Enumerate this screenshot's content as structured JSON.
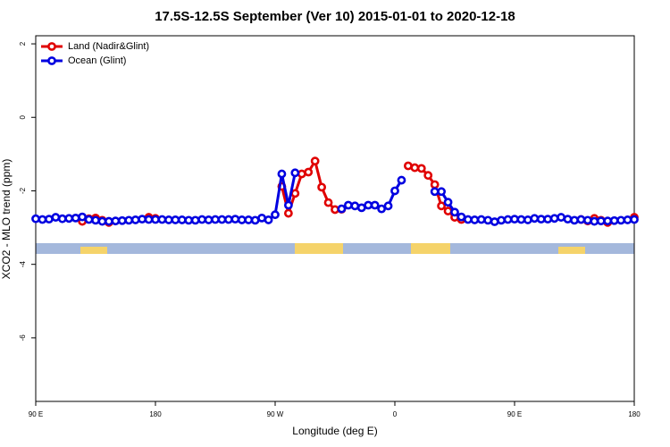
{
  "chart_data": {
    "type": "line",
    "title": "17.5S-12.5S September (Ver 10)   2015-01-01 to 2020-12-18",
    "xlabel": "Longitude (deg E)",
    "ylabel": "XCO2 - MLO trend (ppm)",
    "xlim": [
      90,
      540
    ],
    "ylim": [
      -7.73,
      2.22
    ],
    "xticks": [
      {
        "value": 90,
        "label": "90 E"
      },
      180,
      {
        "value": 270,
        "label": "90 W"
      },
      {
        "value": 360,
        "label": "0"
      },
      {
        "value": 450,
        "label": "90 E"
      },
      {
        "value": 540,
        "label": "180"
      }
    ],
    "yticks": [
      -6,
      -4,
      -2,
      0,
      2
    ],
    "legend": "top-left",
    "x": [
      90,
      95,
      100,
      105,
      110,
      115,
      120,
      125,
      130,
      135,
      140,
      145,
      150,
      155,
      160,
      165,
      170,
      175,
      180,
      185,
      190,
      195,
      200,
      205,
      210,
      215,
      220,
      225,
      230,
      235,
      240,
      245,
      250,
      255,
      260,
      265,
      270,
      275,
      280,
      285,
      290,
      295,
      300,
      305,
      310,
      315,
      320,
      325,
      330,
      335,
      340,
      345,
      350,
      355,
      360,
      365,
      370,
      375,
      380,
      385,
      390,
      395,
      400,
      405,
      410,
      415,
      420,
      425,
      430,
      435,
      440,
      445,
      450,
      455,
      460,
      465,
      470,
      475,
      480,
      485,
      490,
      495,
      500,
      505,
      510,
      515,
      520,
      525,
      530,
      535,
      540
    ],
    "series": [
      {
        "name": "Land (Nadir&Glint)",
        "color": "#e00000",
        "values": [
          null,
          null,
          null,
          null,
          null,
          null,
          null,
          -2.83,
          -2.76,
          -2.74,
          -2.8,
          -2.86,
          null,
          null,
          null,
          null,
          null,
          -2.72,
          -2.75,
          null,
          null,
          null,
          null,
          null,
          null,
          null,
          null,
          null,
          null,
          null,
          null,
          null,
          null,
          null,
          null,
          null,
          null,
          -1.88,
          -2.61,
          -2.07,
          -1.54,
          -1.49,
          -1.19,
          -1.9,
          -2.32,
          -2.51,
          -2.5,
          null,
          null,
          null,
          null,
          null,
          null,
          null,
          null,
          null,
          -1.32,
          -1.37,
          -1.39,
          -1.58,
          -1.83,
          -2.41,
          -2.55,
          -2.72,
          -2.78,
          null,
          null,
          null,
          null,
          null,
          null,
          null,
          null,
          null,
          null,
          null,
          null,
          null,
          null,
          null,
          null,
          null,
          -2.78,
          -2.82,
          -2.75,
          -2.8,
          -2.86,
          null,
          null,
          null,
          -2.72
        ]
      },
      {
        "name": "Ocean (Glint)",
        "color": "#0000e0",
        "values": [
          -2.76,
          -2.78,
          -2.77,
          -2.72,
          -2.76,
          -2.75,
          -2.74,
          -2.71,
          -2.78,
          -2.8,
          -2.83,
          -2.83,
          -2.82,
          -2.81,
          -2.8,
          -2.79,
          -2.77,
          -2.78,
          -2.78,
          -2.78,
          -2.79,
          -2.79,
          -2.79,
          -2.8,
          -2.8,
          -2.78,
          -2.79,
          -2.78,
          -2.78,
          -2.78,
          -2.77,
          -2.79,
          -2.79,
          -2.8,
          -2.74,
          -2.79,
          -2.65,
          -1.54,
          -2.39,
          -1.51,
          null,
          null,
          null,
          null,
          null,
          null,
          -2.49,
          -2.39,
          -2.41,
          -2.46,
          -2.39,
          -2.39,
          -2.49,
          -2.41,
          -2.0,
          -1.71,
          null,
          null,
          null,
          null,
          -2.02,
          -2.02,
          -2.31,
          -2.58,
          -2.71,
          -2.78,
          -2.79,
          -2.78,
          -2.8,
          -2.84,
          -2.8,
          -2.78,
          -2.77,
          -2.78,
          -2.79,
          -2.75,
          -2.77,
          -2.77,
          -2.75,
          -2.72,
          -2.77,
          -2.8,
          -2.78,
          -2.8,
          -2.83,
          -2.82,
          -2.82,
          -2.81,
          -2.8,
          -2.79,
          -2.78
        ]
      }
    ]
  }
}
